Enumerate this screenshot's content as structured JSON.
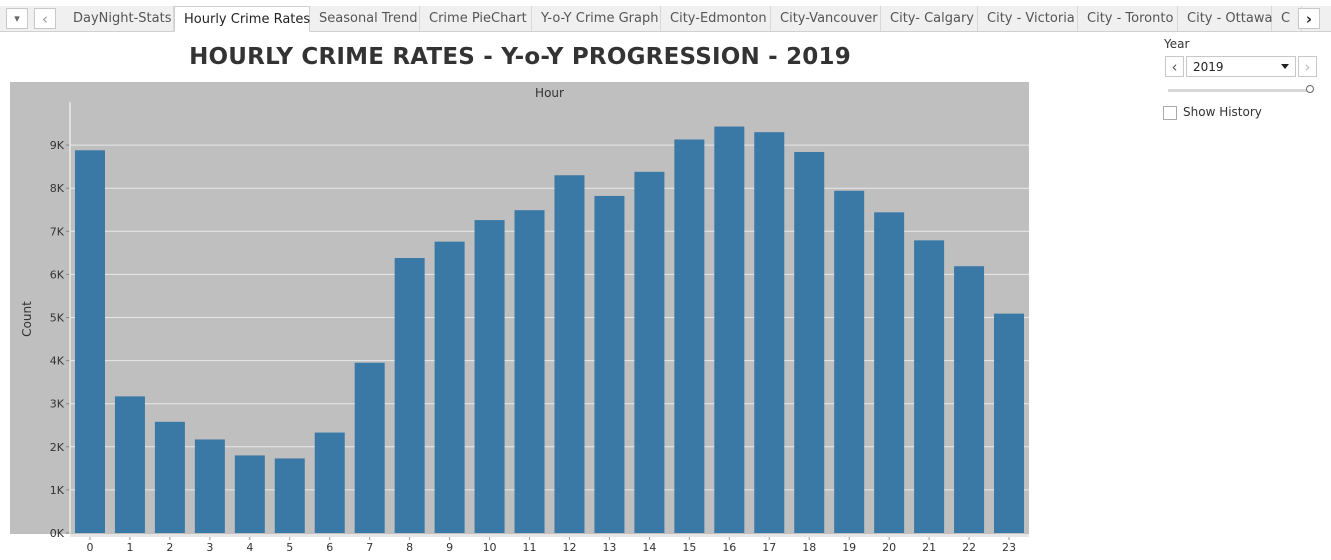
{
  "tabs": {
    "items": [
      {
        "label": "DayNight-Stats",
        "active": false
      },
      {
        "label": "Hourly Crime Rates",
        "active": true
      },
      {
        "label": "Seasonal Trend",
        "active": false
      },
      {
        "label": "Crime PieChart",
        "active": false
      },
      {
        "label": "Y-o-Y Crime Graph",
        "active": false
      },
      {
        "label": "City-Edmonton",
        "active": false
      },
      {
        "label": "City-Vancouver",
        "active": false
      },
      {
        "label": "City- Calgary",
        "active": false
      },
      {
        "label": "City - Victoria",
        "active": false
      },
      {
        "label": "City - Toronto",
        "active": false
      },
      {
        "label": "City - Ottawa",
        "active": false
      },
      {
        "label": "C",
        "active": false
      }
    ],
    "menu_glyph": "▾",
    "prev_glyph": "‹",
    "next_glyph": "›"
  },
  "page": {
    "title": "HOURLY CRIME RATES - Y-o-Y PROGRESSION  - 2019"
  },
  "filter": {
    "label": "Year",
    "selected": "2019",
    "prev_glyph": "‹",
    "next_glyph": "›",
    "show_history_label": "Show History",
    "show_history_checked": false
  },
  "chart_data": {
    "type": "bar",
    "title": "HOURLY CRIME RATES - Y-o-Y PROGRESSION  - 2019",
    "xlabel": "Hour",
    "ylabel": "Count",
    "categories": [
      "0",
      "1",
      "2",
      "3",
      "4",
      "5",
      "6",
      "7",
      "8",
      "9",
      "10",
      "11",
      "12",
      "13",
      "14",
      "15",
      "16",
      "17",
      "18",
      "19",
      "20",
      "21",
      "22",
      "23"
    ],
    "values": [
      8880,
      3170,
      2580,
      2170,
      1800,
      1730,
      2330,
      3950,
      6380,
      6760,
      7260,
      7490,
      8300,
      7820,
      8380,
      9130,
      9430,
      9300,
      8840,
      7940,
      7440,
      6790,
      6190,
      5090
    ],
    "ylim": [
      0,
      9600
    ],
    "yticks": [
      0,
      1000,
      2000,
      3000,
      4000,
      5000,
      6000,
      7000,
      8000,
      9000
    ],
    "ytick_labels": [
      "0K",
      "1K",
      "2K",
      "3K",
      "4K",
      "5K",
      "6K",
      "7K",
      "8K",
      "9K"
    ],
    "grid": true,
    "colors": {
      "bar": "#3a78a6",
      "plot_bg": "#bfbfbf",
      "grid": "#e8e8e8"
    }
  }
}
